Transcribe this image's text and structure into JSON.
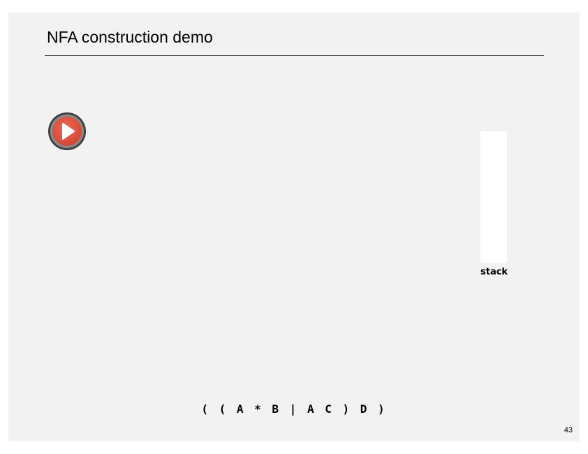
{
  "slide": {
    "title": "NFA construction demo",
    "stack_label": "stack",
    "regex": "( ( A * B | A C ) D )",
    "page_number": "43"
  },
  "controls": {
    "play_icon": "play-icon",
    "accent_color": "#e0533f"
  }
}
